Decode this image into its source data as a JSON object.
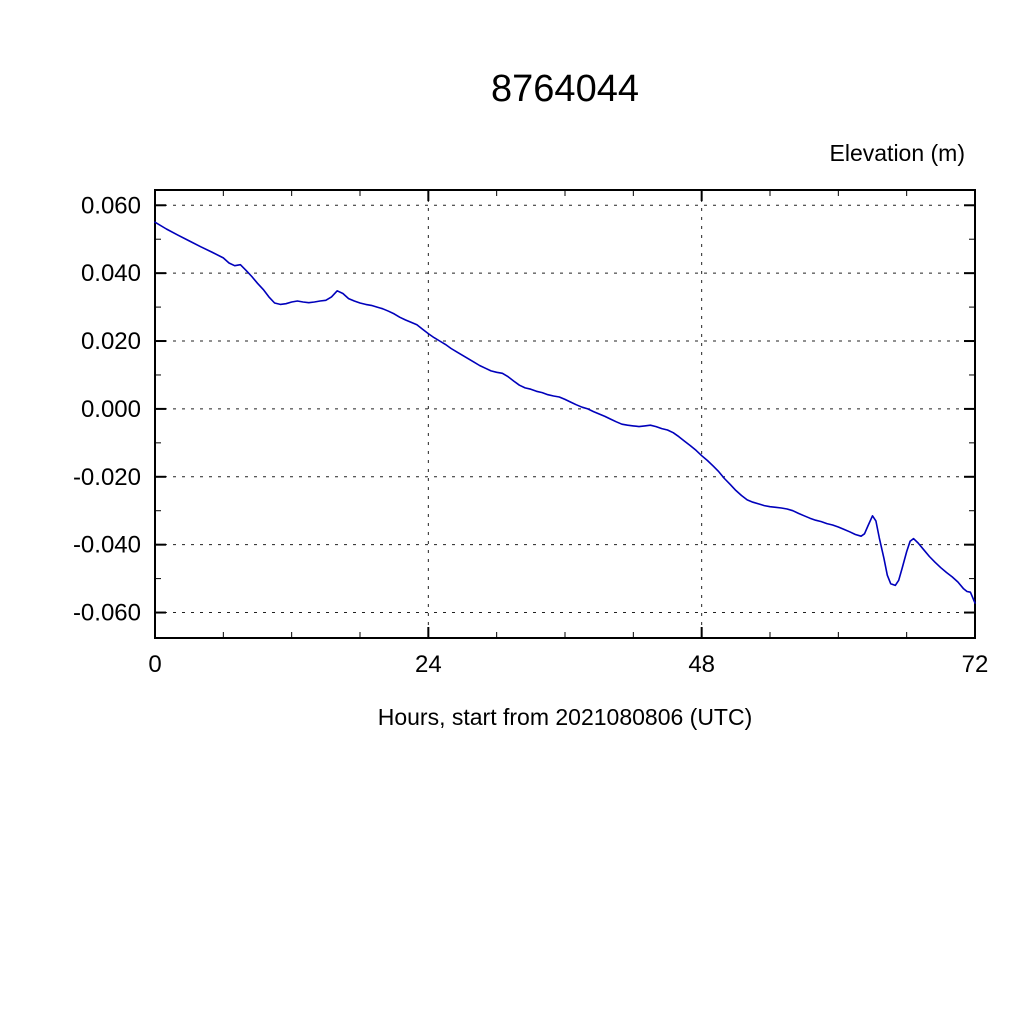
{
  "chart_data": {
    "type": "line",
    "title": "8764044",
    "right_label": "Elevation (m)",
    "xlabel": "Hours, start from 2021080806 (UTC)",
    "xlim": [
      0,
      72
    ],
    "ylim": [
      -0.0675,
      0.0645
    ],
    "grid": "dashed",
    "legend": "none",
    "xticks": {
      "major": [
        0,
        24,
        48,
        72
      ],
      "labels": [
        "0",
        "24",
        "48",
        "72"
      ],
      "minor_step": 6
    },
    "yticks": {
      "major": [
        0.06,
        0.04,
        0.02,
        0.0,
        -0.02,
        -0.04,
        -0.06
      ],
      "labels": [
        "0.060",
        "0.040",
        "0.020",
        "0.000",
        "-0.020",
        "-0.040",
        "-0.060"
      ],
      "minor_step": 0.01
    },
    "series": [
      {
        "name": "elevation",
        "color": "#0000bb",
        "points": [
          [
            0,
            0.055
          ],
          [
            1,
            0.053
          ],
          [
            2,
            0.0512
          ],
          [
            3,
            0.0495
          ],
          [
            4,
            0.0478
          ],
          [
            5,
            0.0462
          ],
          [
            6,
            0.0445
          ],
          [
            6.5,
            0.043
          ],
          [
            7,
            0.0422
          ],
          [
            7.5,
            0.0425
          ],
          [
            8,
            0.0408
          ],
          [
            8.5,
            0.039
          ],
          [
            9,
            0.037
          ],
          [
            9.5,
            0.0352
          ],
          [
            10,
            0.033
          ],
          [
            10.5,
            0.0312
          ],
          [
            11,
            0.0308
          ],
          [
            11.5,
            0.031
          ],
          [
            12,
            0.0315
          ],
          [
            12.5,
            0.0318
          ],
          [
            13,
            0.0315
          ],
          [
            13.5,
            0.0313
          ],
          [
            14,
            0.0315
          ],
          [
            14.5,
            0.0318
          ],
          [
            15,
            0.032
          ],
          [
            15.5,
            0.033
          ],
          [
            16,
            0.0348
          ],
          [
            16.5,
            0.034
          ],
          [
            17,
            0.0325
          ],
          [
            17.5,
            0.0318
          ],
          [
            18,
            0.0312
          ],
          [
            18.5,
            0.0308
          ],
          [
            19,
            0.0305
          ],
          [
            19.5,
            0.03
          ],
          [
            20,
            0.0295
          ],
          [
            20.5,
            0.0288
          ],
          [
            21,
            0.028
          ],
          [
            21.5,
            0.027
          ],
          [
            22,
            0.0262
          ],
          [
            22.5,
            0.0255
          ],
          [
            23,
            0.0248
          ],
          [
            23.5,
            0.0235
          ],
          [
            24,
            0.0222
          ],
          [
            24.5,
            0.021
          ],
          [
            25,
            0.02
          ],
          [
            25.5,
            0.019
          ],
          [
            26,
            0.0178
          ],
          [
            26.5,
            0.0168
          ],
          [
            27,
            0.0158
          ],
          [
            27.5,
            0.0148
          ],
          [
            28,
            0.0138
          ],
          [
            28.5,
            0.0128
          ],
          [
            29,
            0.012
          ],
          [
            29.5,
            0.0112
          ],
          [
            30,
            0.0108
          ],
          [
            30.5,
            0.0105
          ],
          [
            31,
            0.0095
          ],
          [
            31.5,
            0.0082
          ],
          [
            32,
            0.007
          ],
          [
            32.5,
            0.0062
          ],
          [
            33,
            0.0058
          ],
          [
            33.5,
            0.0052
          ],
          [
            34,
            0.0048
          ],
          [
            34.5,
            0.0042
          ],
          [
            35,
            0.0038
          ],
          [
            35.5,
            0.0035
          ],
          [
            36,
            0.0028
          ],
          [
            36.5,
            0.002
          ],
          [
            37,
            0.0012
          ],
          [
            37.5,
            0.0005
          ],
          [
            38,
            0.0
          ],
          [
            38.5,
            -0.0008
          ],
          [
            39,
            -0.0015
          ],
          [
            39.5,
            -0.0022
          ],
          [
            40,
            -0.003
          ],
          [
            40.5,
            -0.0038
          ],
          [
            41,
            -0.0045
          ],
          [
            41.5,
            -0.0048
          ],
          [
            42,
            -0.005
          ],
          [
            42.5,
            -0.0052
          ],
          [
            43,
            -0.005
          ],
          [
            43.5,
            -0.0048
          ],
          [
            44,
            -0.0052
          ],
          [
            44.5,
            -0.0058
          ],
          [
            45,
            -0.0062
          ],
          [
            45.5,
            -0.007
          ],
          [
            46,
            -0.0082
          ],
          [
            46.5,
            -0.0095
          ],
          [
            47,
            -0.0108
          ],
          [
            47.5,
            -0.0122
          ],
          [
            48,
            -0.0138
          ],
          [
            48.5,
            -0.0152
          ],
          [
            49,
            -0.0168
          ],
          [
            49.5,
            -0.0185
          ],
          [
            50,
            -0.0205
          ],
          [
            50.5,
            -0.0222
          ],
          [
            51,
            -0.024
          ],
          [
            51.5,
            -0.0255
          ],
          [
            52,
            -0.0268
          ],
          [
            52.5,
            -0.0275
          ],
          [
            53,
            -0.028
          ],
          [
            53.5,
            -0.0285
          ],
          [
            54,
            -0.0288
          ],
          [
            54.5,
            -0.029
          ],
          [
            55,
            -0.0292
          ],
          [
            55.5,
            -0.0295
          ],
          [
            56,
            -0.03
          ],
          [
            56.5,
            -0.0308
          ],
          [
            57,
            -0.0315
          ],
          [
            57.5,
            -0.0322
          ],
          [
            58,
            -0.0328
          ],
          [
            58.5,
            -0.0332
          ],
          [
            59,
            -0.0338
          ],
          [
            59.5,
            -0.0342
          ],
          [
            60,
            -0.0348
          ],
          [
            60.5,
            -0.0355
          ],
          [
            61,
            -0.0362
          ],
          [
            61.5,
            -0.037
          ],
          [
            62,
            -0.0375
          ],
          [
            62.3,
            -0.0368
          ],
          [
            62.6,
            -0.0345
          ],
          [
            63,
            -0.0315
          ],
          [
            63.3,
            -0.033
          ],
          [
            63.6,
            -0.038
          ],
          [
            64,
            -0.044
          ],
          [
            64.3,
            -0.049
          ],
          [
            64.6,
            -0.0515
          ],
          [
            65,
            -0.052
          ],
          [
            65.3,
            -0.0505
          ],
          [
            65.6,
            -0.047
          ],
          [
            66,
            -0.042
          ],
          [
            66.3,
            -0.039
          ],
          [
            66.6,
            -0.0382
          ],
          [
            67,
            -0.0395
          ],
          [
            67.5,
            -0.0415
          ],
          [
            68,
            -0.0435
          ],
          [
            68.5,
            -0.0452
          ],
          [
            69,
            -0.0468
          ],
          [
            69.5,
            -0.0482
          ],
          [
            70,
            -0.0495
          ],
          [
            70.5,
            -0.051
          ],
          [
            71,
            -0.053
          ],
          [
            71.3,
            -0.0538
          ],
          [
            71.6,
            -0.054
          ],
          [
            72,
            -0.0572
          ]
        ]
      }
    ]
  }
}
